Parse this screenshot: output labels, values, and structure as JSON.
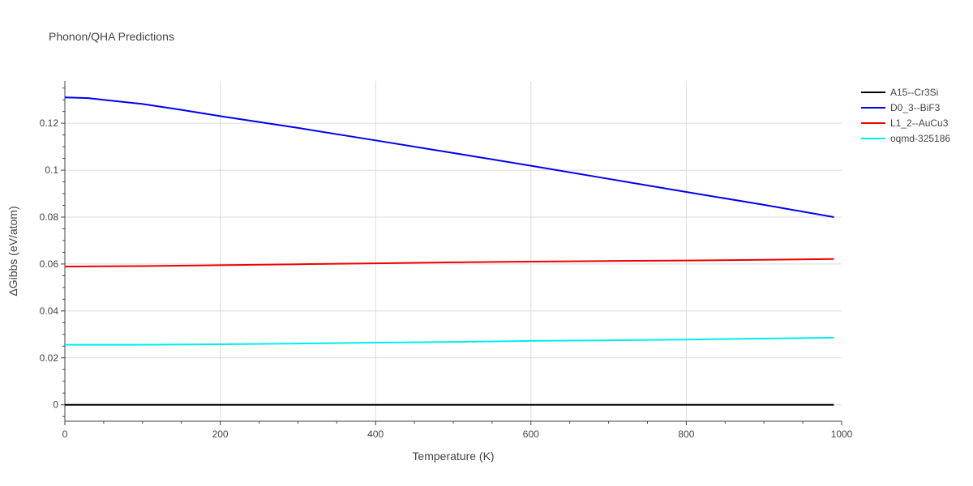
{
  "chart_data": {
    "type": "line",
    "title": "Phonon/QHA Predictions",
    "xlabel": "Temperature (K)",
    "ylabel": "ΔGibbs (eV/atom)",
    "xlim": [
      0,
      1000
    ],
    "ylim": [
      -0.007,
      0.138
    ],
    "xticks": [
      0,
      200,
      400,
      600,
      800,
      1000
    ],
    "xtick_labels": [
      "0",
      "200",
      "400",
      "600",
      "800",
      "1000"
    ],
    "yticks": [
      0,
      0.02,
      0.04,
      0.06,
      0.08,
      0.1,
      0.12
    ],
    "ytick_labels": [
      "0",
      "0.02",
      "0.04",
      "0.06",
      "0.08",
      "0.1",
      "0.12"
    ],
    "grid": true,
    "legend_position": "top-right",
    "series": [
      {
        "name": "A15--Cr3Si",
        "color": "#000000",
        "x": [
          0,
          990
        ],
        "y": [
          0,
          0
        ]
      },
      {
        "name": "D0_3--BiF3",
        "color": "#0000ee",
        "x": [
          0,
          30,
          50,
          100,
          150,
          200,
          300,
          400,
          500,
          600,
          700,
          800,
          900,
          990
        ],
        "y": [
          0.131,
          0.1307,
          0.13,
          0.1282,
          0.1257,
          0.123,
          0.118,
          0.1127,
          0.1073,
          0.1019,
          0.0963,
          0.0907,
          0.0852,
          0.08
        ]
      },
      {
        "name": "L1_2--AuCu3",
        "color": "#ee0000",
        "x": [
          0,
          100,
          200,
          300,
          400,
          500,
          600,
          700,
          800,
          900,
          990
        ],
        "y": [
          0.0589,
          0.0591,
          0.0595,
          0.0599,
          0.0603,
          0.0607,
          0.061,
          0.0613,
          0.0615,
          0.0618,
          0.0621
        ]
      },
      {
        "name": "oqmd-325186",
        "color": "#00eeee",
        "x": [
          0,
          100,
          200,
          300,
          400,
          500,
          600,
          700,
          800,
          900,
          990
        ],
        "y": [
          0.0256,
          0.0256,
          0.0258,
          0.0261,
          0.0265,
          0.0268,
          0.0272,
          0.0275,
          0.0278,
          0.0282,
          0.0286
        ]
      }
    ]
  }
}
